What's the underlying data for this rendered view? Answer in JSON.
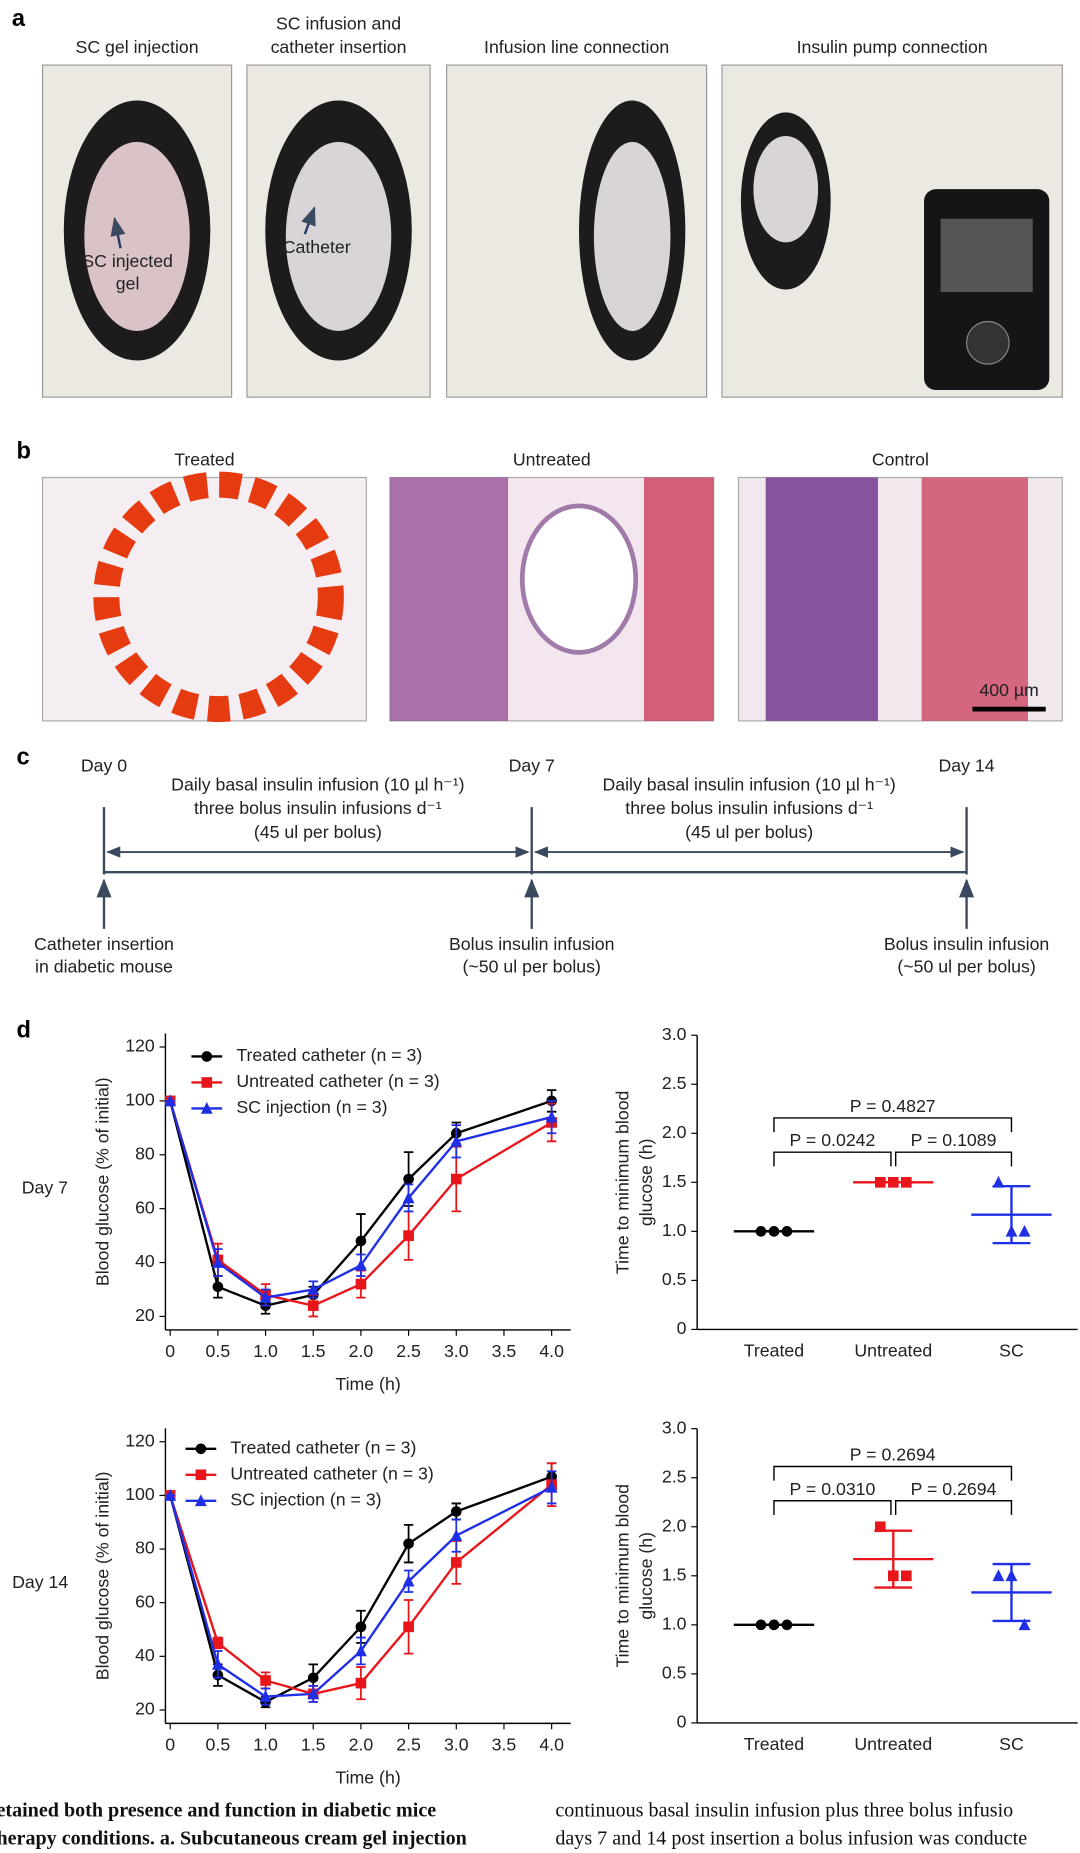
{
  "panel_labels": [
    "a",
    "b",
    "c",
    "d"
  ],
  "panel_a": {
    "photos": [
      {
        "title": [
          "SC gel injection"
        ],
        "annotation": [
          "SC injected",
          "gel"
        ]
      },
      {
        "title": [
          "SC infusion and",
          "catheter insertion"
        ],
        "annotation": [
          "Catheter"
        ]
      },
      {
        "title": [
          "Infusion line connection"
        ]
      },
      {
        "title": [
          "Insulin pump connection"
        ]
      }
    ]
  },
  "panel_b": {
    "photos": [
      {
        "title": "Treated"
      },
      {
        "title": "Untreated"
      },
      {
        "title": "Control"
      }
    ],
    "scale_bar": "400 µm"
  },
  "panel_c": {
    "days": [
      "Day 0",
      "Day 7",
      "Day 14"
    ],
    "phases": [
      [
        "Daily basal insulin infusion (10 µl h⁻¹)",
        "three bolus insulin infusions d⁻¹",
        "(45 ul per bolus)"
      ],
      [
        "Daily basal insulin infusion (10 µl h⁻¹)",
        "three bolus insulin infusions d⁻¹",
        "(45 ul per bolus)"
      ]
    ],
    "events": [
      [
        "Catheter insertion",
        "in diabetic mouse"
      ],
      [
        "Bolus insulin infusion",
        "(~50 ul per bolus)"
      ],
      [
        "Bolus insulin infusion",
        "(~50 ul per bolus)"
      ]
    ]
  },
  "row_labels": [
    "Day 7",
    "Day 14"
  ],
  "chart_data": [
    {
      "type": "line",
      "ylabel": "Blood glucose (% of initial)",
      "xlabel": "Time (h)",
      "x": [
        0,
        0.5,
        1,
        1.5,
        2,
        2.5,
        3,
        4
      ],
      "series": [
        {
          "name": "Treated catheter (n = 3)",
          "color": "#000000",
          "marker": "circle",
          "values": [
            100,
            31,
            24,
            28,
            48,
            71,
            88,
            100
          ],
          "errors": [
            0,
            4,
            3,
            3,
            10,
            10,
            4,
            4
          ]
        },
        {
          "name": "Untreated catheter (n = 3)",
          "color": "#e8161b",
          "marker": "square",
          "values": [
            100,
            41,
            28,
            24,
            32,
            50,
            71,
            92
          ],
          "errors": [
            0,
            6,
            4,
            4,
            5,
            9,
            12,
            7
          ]
        },
        {
          "name": "SC injection (n = 3)",
          "color": "#1f2fe6",
          "marker": "triangle",
          "values": [
            100,
            40,
            27,
            30,
            39,
            64,
            85,
            94
          ],
          "errors": [
            0,
            5,
            3,
            3,
            4,
            5,
            6,
            6
          ]
        }
      ],
      "xlim": [
        -0.05,
        4.2
      ],
      "ylim": [
        15,
        125
      ],
      "xticks": [
        0,
        0.5,
        {
          "value": 1,
          "label": "1.0"
        },
        1.5,
        {
          "value": 2,
          "label": "2.0"
        },
        2.5,
        {
          "value": 3,
          "label": "3.0"
        },
        3.5,
        {
          "value": 4,
          "label": "4.0"
        }
      ],
      "yticks": [
        20,
        40,
        60,
        80,
        100,
        120
      ]
    },
    {
      "type": "dot",
      "ylabel": [
        "Time to minimum blood",
        "glucose (h)"
      ],
      "categories": [
        "Treated",
        "Untreated",
        "SC"
      ],
      "groups": [
        {
          "color": "#000000",
          "marker": "circle",
          "values": [
            1,
            1,
            1
          ],
          "mean": 1,
          "sd": 0
        },
        {
          "color": "#e8161b",
          "marker": "square",
          "values": [
            1.5,
            1.5,
            1.5
          ],
          "mean": 1.5,
          "sd": 0
        },
        {
          "color": "#1f2fe6",
          "marker": "triangle",
          "values": [
            1.5,
            1,
            1
          ],
          "mean": 1.17,
          "sd": 0.29
        }
      ],
      "comparisons": [
        "P = 0.4827",
        "P = 0.0242",
        "P = 0.1089"
      ],
      "ylim": [
        0,
        3
      ],
      "yticks": [
        0,
        0.5,
        {
          "value": 1,
          "label": "1.0"
        },
        1.5,
        {
          "value": 2,
          "label": "2.0"
        },
        2.5,
        {
          "value": 3,
          "label": "3.0"
        }
      ]
    },
    {
      "type": "line",
      "ylabel": "Blood glucose (% of initial)",
      "xlabel": "Time (h)",
      "x": [
        0,
        0.5,
        1,
        1.5,
        2,
        2.5,
        3,
        4
      ],
      "series": [
        {
          "name": "Treated catheter (n = 3)",
          "color": "#000000",
          "marker": "circle",
          "values": [
            100,
            33,
            23,
            32,
            51,
            82,
            94,
            107
          ],
          "errors": [
            0,
            4,
            2,
            5,
            6,
            7,
            3,
            5
          ]
        },
        {
          "name": "Untreated catheter (n = 3)",
          "color": "#e8161b",
          "marker": "square",
          "values": [
            100,
            45,
            31,
            26,
            30,
            51,
            75,
            104
          ],
          "errors": [
            0,
            2,
            3,
            3,
            6,
            10,
            8,
            8
          ]
        },
        {
          "name": "SC injection (n = 3)",
          "color": "#1f2fe6",
          "marker": "triangle",
          "values": [
            100,
            37,
            25,
            26,
            42,
            68,
            85,
            103
          ],
          "errors": [
            0,
            5,
            3,
            3,
            5,
            4,
            6,
            6
          ]
        }
      ],
      "xlim": [
        -0.05,
        4.2
      ],
      "ylim": [
        15,
        125
      ],
      "xticks": [
        0,
        0.5,
        {
          "value": 1,
          "label": "1.0"
        },
        1.5,
        {
          "value": 2,
          "label": "2.0"
        },
        2.5,
        {
          "value": 3,
          "label": "3.0"
        },
        3.5,
        {
          "value": 4,
          "label": "4.0"
        }
      ],
      "yticks": [
        20,
        40,
        60,
        80,
        100,
        120
      ]
    },
    {
      "type": "dot",
      "ylabel": [
        "Time to minimum blood",
        "glucose (h)"
      ],
      "categories": [
        "Treated",
        "Untreated",
        "SC"
      ],
      "groups": [
        {
          "color": "#000000",
          "marker": "circle",
          "values": [
            1,
            1,
            1
          ],
          "mean": 1,
          "sd": 0
        },
        {
          "color": "#e8161b",
          "marker": "square",
          "values": [
            2,
            1.5,
            1.5
          ],
          "mean": 1.67,
          "sd": 0.29
        },
        {
          "color": "#1f2fe6",
          "marker": "triangle",
          "values": [
            1.5,
            1.5,
            1
          ],
          "mean": 1.33,
          "sd": 0.29
        }
      ],
      "comparisons": [
        "P = 0.2694",
        "P = 0.0310",
        "P = 0.2694"
      ],
      "ylim": [
        0,
        3
      ],
      "yticks": [
        0,
        0.5,
        {
          "value": 1,
          "label": "1.0"
        },
        1.5,
        {
          "value": 2,
          "label": "2.0"
        },
        2.5,
        {
          "value": 3,
          "label": "3.0"
        }
      ]
    }
  ],
  "caption": {
    "left": [
      "etained both presence and function in diabetic mice",
      "herapy conditions. a. Subcutaneous cream gel injection"
    ],
    "right": [
      "continuous basal insulin infusion plus three bolus infusio",
      "days 7 and 14 post insertion a bolus infusion was conducte"
    ]
  }
}
